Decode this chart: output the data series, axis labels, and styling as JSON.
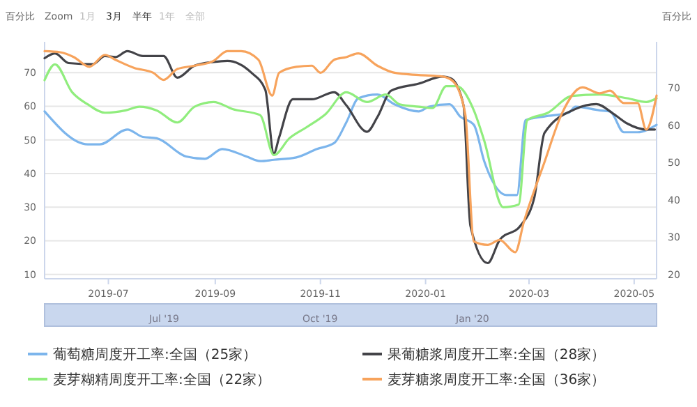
{
  "chart_data": {
    "type": "line",
    "ylabel": "百分比",
    "y2label": "百分比",
    "annotations": [
      "Zoom",
      "1月",
      "3月",
      "半年",
      "1年",
      "全部",
      "Jul '19",
      "Oct '19",
      "Jan '20"
    ],
    "xlim": [
      "2019-05-25",
      "2020-05-14"
    ],
    "xticks": [
      "2019-07",
      "2019-09",
      "2019-11",
      "2020-01",
      "2020-03",
      "2020-05"
    ],
    "ylim": [
      8.7,
      79.2
    ],
    "yticks": [
      10,
      20,
      30,
      40,
      50,
      60,
      70
    ],
    "y2lim": [
      18.9,
      82.4
    ],
    "y2ticks": [
      20,
      30,
      40,
      50,
      60,
      70
    ],
    "grid": "y",
    "legend": "bottom",
    "series": [
      {
        "name": "葡萄糖周度开工率:全国（25家）",
        "color": "#7cb5ec",
        "x": [
          "2019-05-25",
          "2019-06-19",
          "2019-06-26",
          "2019-07-12",
          "2019-07-21",
          "2019-07-29",
          "2019-08-15",
          "2019-08-26",
          "2019-09-05",
          "2019-09-19",
          "2019-09-27",
          "2019-10-05",
          "2019-10-18",
          "2019-10-30",
          "2019-11-09",
          "2019-11-16",
          "2019-11-23",
          "2019-12-04",
          "2019-12-14",
          "2019-12-28",
          "2020-01-03",
          "2020-01-15",
          "2020-01-21",
          "2020-01-29",
          "2020-02-04",
          "2020-02-17",
          "2020-02-23",
          "2020-02-28",
          "2020-03-10",
          "2020-03-24",
          "2020-03-28",
          "2020-04-11",
          "2020-04-17",
          "2020-04-25",
          "2020-05-03",
          "2020-05-14"
        ],
        "values": [
          58.5,
          48.7,
          48.7,
          53.1,
          50.9,
          50.5,
          45.1,
          44.4,
          47.3,
          45.1,
          43.7,
          44.1,
          44.8,
          47.3,
          49.1,
          55.2,
          62.4,
          63.5,
          60.6,
          58.5,
          59.9,
          60.6,
          57.0,
          54.5,
          43.7,
          33.6,
          33.6,
          55.9,
          57.0,
          58.1,
          59.9,
          58.8,
          58.5,
          52.3,
          52.3,
          54.5
        ]
      },
      {
        "name": "果葡糖浆周度开工率:全国（28家）",
        "color": "#434348",
        "axis": "y2",
        "x": [
          "2019-05-25",
          "2019-05-31",
          "2019-06-08",
          "2019-06-22",
          "2019-06-29",
          "2019-07-05",
          "2019-07-12",
          "2019-07-21",
          "2019-08-02",
          "2019-08-10",
          "2019-08-20",
          "2019-08-31",
          "2019-09-08",
          "2019-09-22",
          "2019-09-30",
          "2019-10-05",
          "2019-10-08",
          "2019-10-16",
          "2019-10-27",
          "2019-11-09",
          "2019-11-16",
          "2019-11-28",
          "2019-12-04",
          "2019-12-12",
          "2019-12-28",
          "2020-01-11",
          "2020-01-16",
          "2020-01-23",
          "2020-01-27",
          "2020-02-06",
          "2020-02-13",
          "2020-02-25",
          "2020-03-04",
          "2020-03-10",
          "2020-03-28",
          "2020-04-09",
          "2020-04-19",
          "2020-04-27",
          "2020-05-08",
          "2020-05-13"
        ],
        "values": [
          78.0,
          79.3,
          76.7,
          76.4,
          78.6,
          78.3,
          79.9,
          78.6,
          78.6,
          72.8,
          76.0,
          77.0,
          77.3,
          74.1,
          69.6,
          52.5,
          56.7,
          67.0,
          67.0,
          68.9,
          65.4,
          58.3,
          62.2,
          69.3,
          71.2,
          73.1,
          72.5,
          65.4,
          33.1,
          23.1,
          29.3,
          33.1,
          40.5,
          58.0,
          64.4,
          65.7,
          63.1,
          60.5,
          58.9,
          58.9
        ]
      },
      {
        "name": "麦芽糊精周度开工率:全国（22家）",
        "color": "#90ed7d",
        "x": [
          "2019-05-25",
          "2019-05-31",
          "2019-06-10",
          "2019-06-19",
          "2019-06-29",
          "2019-07-11",
          "2019-07-19",
          "2019-07-29",
          "2019-08-10",
          "2019-08-20",
          "2019-08-31",
          "2019-09-11",
          "2019-09-27",
          "2019-10-05",
          "2019-10-14",
          "2019-10-24",
          "2019-11-04",
          "2019-11-16",
          "2019-11-28",
          "2019-12-09",
          "2019-12-17",
          "2019-12-28",
          "2020-01-05",
          "2020-01-13",
          "2020-01-19",
          "2020-01-29",
          "2020-02-04",
          "2020-02-15",
          "2020-02-24",
          "2020-02-29",
          "2020-03-12",
          "2020-03-26",
          "2020-04-11",
          "2020-04-27",
          "2020-05-08",
          "2020-05-14"
        ],
        "values": [
          67.8,
          72.5,
          64.2,
          60.6,
          58.1,
          58.8,
          59.9,
          58.8,
          55.2,
          59.9,
          61.3,
          59.2,
          57.4,
          45.5,
          50.5,
          53.8,
          57.7,
          64.2,
          61.3,
          63.5,
          60.6,
          59.9,
          59.5,
          66.0,
          66.0,
          58.8,
          49.8,
          30.0,
          30.8,
          55.9,
          58.1,
          63.1,
          63.5,
          62.4,
          61.3,
          62.4
        ]
      },
      {
        "name": "麦芽糖浆周度开工率:全国（36家）",
        "color": "#f7a35c",
        "axis": "y2",
        "x": [
          "2019-05-25",
          "2019-06-03",
          "2019-06-11",
          "2019-06-20",
          "2019-06-29",
          "2019-07-05",
          "2019-07-16",
          "2019-07-27",
          "2019-08-02",
          "2019-08-10",
          "2019-08-20",
          "2019-08-31",
          "2019-09-08",
          "2019-09-16",
          "2019-09-26",
          "2019-10-04",
          "2019-10-08",
          "2019-10-18",
          "2019-10-27",
          "2019-11-01",
          "2019-11-09",
          "2019-11-16",
          "2019-11-23",
          "2019-12-04",
          "2019-12-14",
          "2019-12-28",
          "2020-01-11",
          "2020-01-17",
          "2020-01-24",
          "2020-01-29",
          "2020-02-06",
          "2020-02-13",
          "2020-02-22",
          "2020-02-27",
          "2020-03-10",
          "2020-03-20",
          "2020-04-01",
          "2020-04-11",
          "2020-04-17",
          "2020-04-25",
          "2020-05-03",
          "2020-05-08",
          "2020-05-14"
        ],
        "values": [
          79.9,
          79.6,
          78.3,
          75.7,
          78.9,
          77.6,
          75.4,
          74.1,
          72.2,
          75.1,
          76.0,
          77.3,
          79.9,
          79.9,
          77.6,
          68.0,
          74.1,
          75.7,
          76.0,
          74.1,
          77.6,
          78.3,
          79.3,
          76.0,
          74.1,
          73.5,
          73.1,
          71.8,
          63.1,
          28.9,
          28.0,
          29.3,
          26.0,
          34.1,
          50.2,
          63.1,
          70.2,
          68.6,
          69.3,
          66.0,
          66.0,
          58.9,
          68.0
        ]
      }
    ]
  }
}
